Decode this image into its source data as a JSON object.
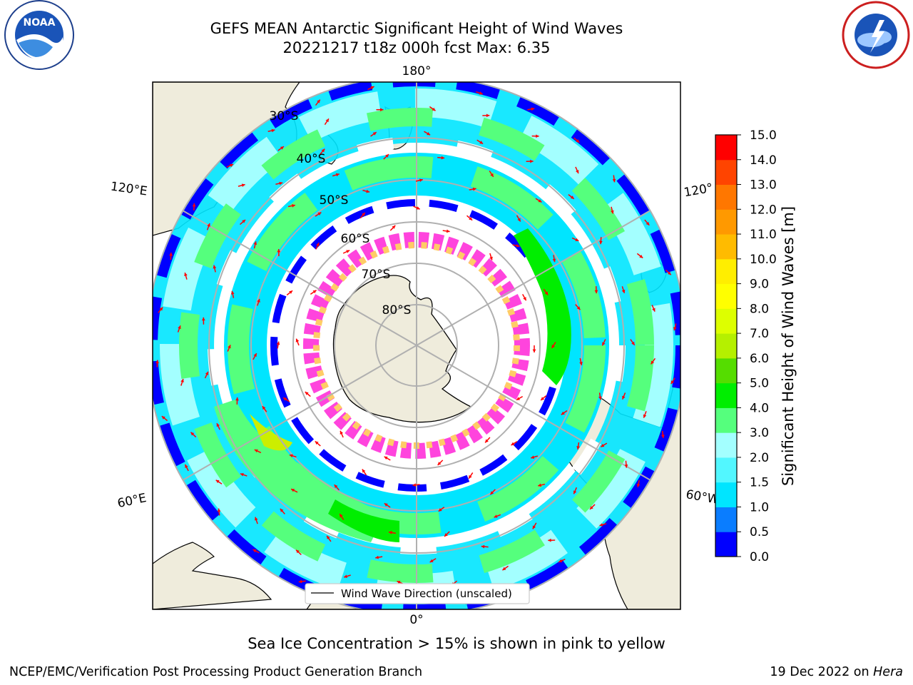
{
  "header": {
    "title_line1": "GEFS MEAN Antarctic Significant Height of Wind Waves",
    "title_line2": "20221217 t18z 000h fcst   Max: 6.35"
  },
  "logos": {
    "left": "noaa-logo",
    "left_text": "NOAA",
    "right": "nws-logo"
  },
  "map": {
    "projection": "south-polar-stereographic",
    "lon_labels": {
      "top": "180°",
      "bottom": "0°",
      "left_upper": "120°E",
      "left_lower": "60°E",
      "right_upper": "120°",
      "right_lower": "60°W"
    },
    "lat_labels": [
      "30°S",
      "40°S",
      "50°S",
      "60°S",
      "70°S",
      "80°S"
    ],
    "legend_label": "Wind Wave Direction (unscaled)",
    "arrow_color": "#ff0000",
    "land_color": "#efecdc"
  },
  "colorbar": {
    "label": "Significant Height of Wind Waves [m]",
    "ticks": [
      "0.0",
      "0.5",
      "1.0",
      "1.5",
      "2.0",
      "3.0",
      "4.0",
      "5.0",
      "6.0",
      "7.0",
      "8.0",
      "9.0",
      "10.0",
      "11.0",
      "12.0",
      "13.0",
      "14.0",
      "15.0"
    ],
    "colors": [
      "#0000ff",
      "#0a7dff",
      "#00e5ff",
      "#52f7ff",
      "#a3ffff",
      "#55ff7d",
      "#00ee00",
      "#55dd00",
      "#b5f000",
      "#ddff00",
      "#ffff00",
      "#ffee00",
      "#ffbb00",
      "#ff9900",
      "#ff7700",
      "#ff4400",
      "#ff0000"
    ]
  },
  "caption": "Sea Ice Concentration > 15% is shown in pink to yellow",
  "footer": {
    "left": "NCEP/EMC/Verification Post Processing Product Generation Branch",
    "right_date": "19 Dec 2022 on ",
    "right_host": "Hera"
  }
}
